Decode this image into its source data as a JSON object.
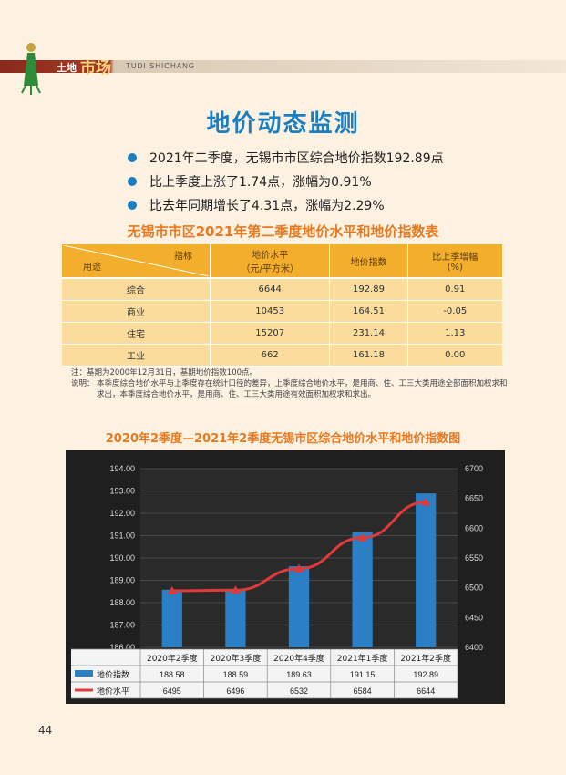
{
  "header": {
    "section_label": "土地",
    "brand": "市场",
    "pinyin": "TUDI SHICHANG"
  },
  "page_title": "地价动态监测",
  "bullets": [
    "2021年二季度，无锡市市区综合地价指数192.89点",
    "比上季度上涨了1.74点，涨幅为0.91%",
    "比去年同期增长了4.31点，涨幅为2.29%"
  ],
  "table": {
    "title": "无锡市市区2021年第二季度地价水平和地价指数表",
    "corner_top": "指标",
    "corner_bottom": "用途",
    "col1_line1": "地价水平",
    "col1_line2": "（元/平方米）",
    "col2": "地价指数",
    "col3_line1": "比上季增幅",
    "col3_line2": "(%)",
    "rows": [
      [
        "综合",
        "6644",
        "192.89",
        "0.91"
      ],
      [
        "商业",
        "10453",
        "164.51",
        "-0.05"
      ],
      [
        "住宅",
        "15207",
        "231.14",
        "1.13"
      ],
      [
        "工业",
        "662",
        "161.18",
        "0.00"
      ]
    ]
  },
  "notes": {
    "note_key": "注：",
    "note_text": "基期为2000年12月31日，基期地价指数100点。",
    "desc_key": "说明：",
    "desc_text": "本季度综合地价水平与上季度存在统计口径的差异，上季度综合地价水平，是用商、住、工三大类用途全部面积加权求和求出，本季度综合地价水平，是用商、住、工三大类用途有效面积加权求和求出。"
  },
  "chart_data": {
    "type": "bar",
    "title": "2020年2季度—2021年2季度无锡市区综合地价水平和地价指数图",
    "categories": [
      "2020年2季度",
      "2020年3季度",
      "2020年4季度",
      "2021年1季度",
      "2021年2季度"
    ],
    "series": [
      {
        "name": "地价指数",
        "type": "bar",
        "axis": "left",
        "values": [
          188.58,
          188.59,
          189.63,
          191.15,
          192.89
        ],
        "labels": [
          "188.58",
          "188.59",
          "189.63",
          "191.15",
          "192.89"
        ],
        "color": "#2b7fc4"
      },
      {
        "name": "地价水平",
        "type": "line",
        "axis": "right",
        "values": [
          6495,
          6496,
          6532,
          6584,
          6644
        ],
        "labels": [
          "6495",
          "6496",
          "6532",
          "6584",
          "6644"
        ],
        "color": "#e03a3a"
      }
    ],
    "y_left": {
      "min": 186,
      "max": 194,
      "ticks": [
        "186.00",
        "187.00",
        "188.00",
        "189.00",
        "190.00",
        "191.00",
        "192.00",
        "193.00",
        "194.00"
      ]
    },
    "y_right": {
      "min": 6400,
      "max": 6700,
      "ticks": [
        "6400",
        "6450",
        "6500",
        "6550",
        "6600",
        "6650",
        "6700"
      ]
    },
    "grid": true,
    "legend": "data-table-below"
  },
  "page_number": "44"
}
